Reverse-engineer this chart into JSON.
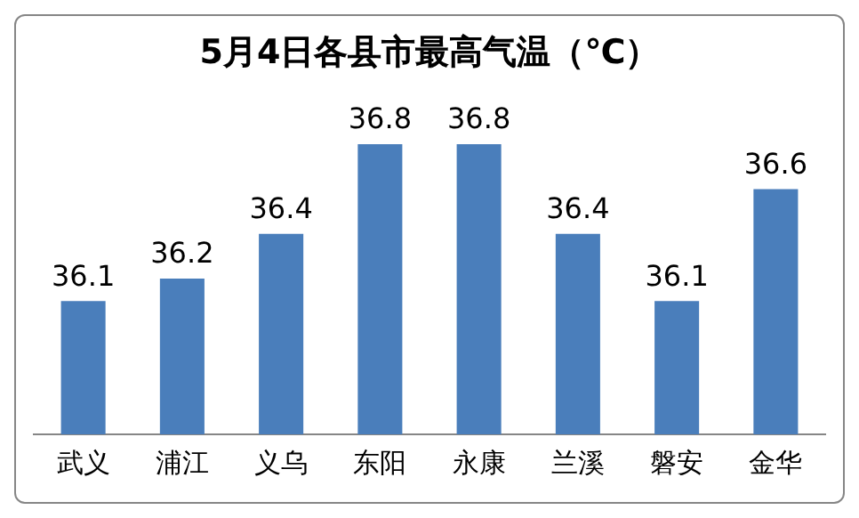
{
  "chart_data": {
    "type": "bar",
    "title": "5月4日各县市最高气温（℃）",
    "categories": [
      "武义",
      "浦江",
      "义乌",
      "东阳",
      "永康",
      "兰溪",
      "磐安",
      "金华"
    ],
    "values": [
      36.1,
      36.2,
      36.4,
      36.8,
      36.8,
      36.4,
      36.1,
      36.6
    ],
    "color": "#4a7ebb",
    "tick_labels": "x",
    "data_labels": true,
    "grid": false,
    "legend": false
  }
}
